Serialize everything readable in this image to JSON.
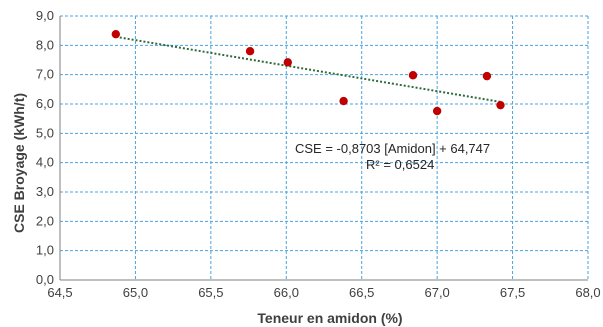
{
  "chart_data": {
    "type": "scatter",
    "title": "",
    "xlabel": "Teneur en amidon (%)",
    "ylabel": "CSE Broyage (kWh/t)",
    "xlim": [
      64.5,
      68.0
    ],
    "ylim": [
      0.0,
      9.0
    ],
    "x_ticks": [
      "64,5",
      "65,0",
      "65,5",
      "66,0",
      "66,5",
      "67,0",
      "67,5",
      "68,0"
    ],
    "y_ticks": [
      "0,0",
      "1,0",
      "2,0",
      "3,0",
      "4,0",
      "5,0",
      "6,0",
      "7,0",
      "8,0",
      "9,0"
    ],
    "x_tick_values": [
      64.5,
      65.0,
      65.5,
      66.0,
      66.5,
      67.0,
      67.5,
      68.0
    ],
    "y_tick_values": [
      0,
      1,
      2,
      3,
      4,
      5,
      6,
      7,
      8,
      9
    ],
    "grid": true,
    "points": [
      {
        "x": 64.87,
        "y": 8.38
      },
      {
        "x": 65.76,
        "y": 7.8
      },
      {
        "x": 66.01,
        "y": 7.42
      },
      {
        "x": 66.38,
        "y": 6.1
      },
      {
        "x": 66.84,
        "y": 6.98
      },
      {
        "x": 67.0,
        "y": 5.76
      },
      {
        "x": 67.33,
        "y": 6.95
      },
      {
        "x": 67.42,
        "y": 5.96
      }
    ],
    "trendline": {
      "type": "linear",
      "slope": -0.8703,
      "intercept": 64.747,
      "x_range": [
        64.87,
        67.42
      ],
      "equation": "CSE = -0,8703 [Amidon] + 64,747",
      "r_squared": "R² = 0,6524"
    },
    "colors": {
      "points": "#c00000",
      "trendline": "#2e6b3a",
      "grid": "#4aa3df",
      "axis": "#7f7f7f"
    }
  }
}
